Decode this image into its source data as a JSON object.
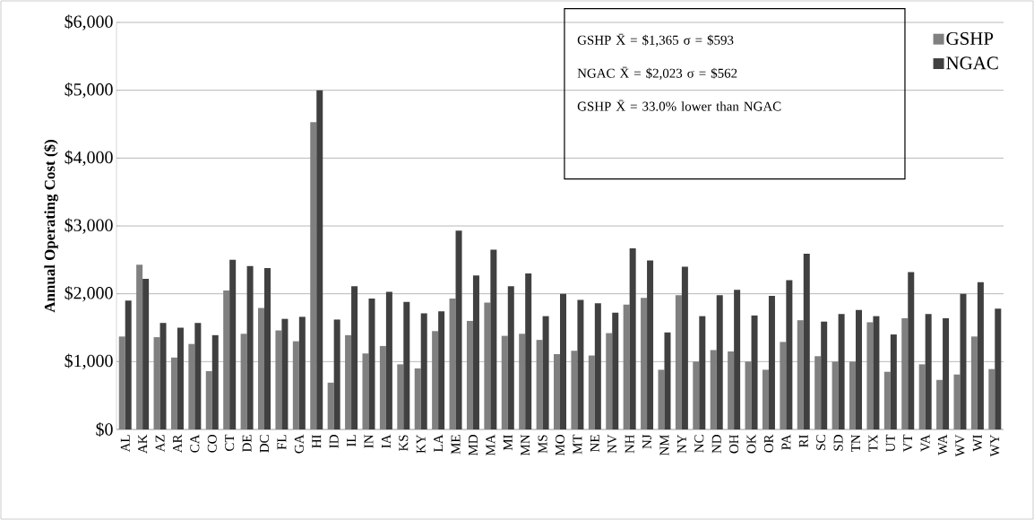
{
  "chart_data": {
    "type": "bar",
    "ylabel": "Annual Operating Cost ($)",
    "categories": [
      "AL",
      "AK",
      "AZ",
      "AR",
      "CA",
      "CO",
      "CT",
      "DE",
      "DC",
      "FL",
      "GA",
      "HI",
      "ID",
      "IL",
      "IN",
      "IA",
      "KS",
      "KY",
      "LA",
      "ME",
      "MD",
      "MA",
      "MI",
      "MN",
      "MS",
      "MO",
      "MT",
      "NE",
      "NV",
      "NH",
      "NJ",
      "NM",
      "NY",
      "NC",
      "ND",
      "OH",
      "OK",
      "OR",
      "PA",
      "RI",
      "SC",
      "SD",
      "TN",
      "TX",
      "UT",
      "VT",
      "VA",
      "WA",
      "WV",
      "WI",
      "WY"
    ],
    "series": [
      {
        "name": "GSHP",
        "color": "#808080",
        "values": [
          1370,
          2430,
          1360,
          1060,
          1260,
          860,
          2050,
          1410,
          1790,
          1460,
          1300,
          4530,
          690,
          1390,
          1120,
          1230,
          960,
          900,
          1450,
          1930,
          1600,
          1870,
          1380,
          1410,
          1320,
          1110,
          1160,
          1090,
          1420,
          1840,
          1940,
          880,
          1980,
          1000,
          1170,
          1150,
          1000,
          880,
          1290,
          1610,
          1080,
          1000,
          1000,
          1580,
          850,
          1640,
          960,
          730,
          810,
          1370,
          890
        ]
      },
      {
        "name": "NGAC",
        "color": "#404040",
        "values": [
          1900,
          2220,
          1570,
          1500,
          1570,
          1390,
          2500,
          2410,
          2380,
          1630,
          1660,
          5000,
          1620,
          2110,
          1930,
          2030,
          1880,
          1710,
          1740,
          2930,
          2270,
          2650,
          2110,
          2300,
          1670,
          2000,
          1910,
          1860,
          1720,
          2670,
          2490,
          1430,
          2400,
          1670,
          1980,
          2060,
          1680,
          1970,
          2200,
          2590,
          1590,
          1700,
          1760,
          1670,
          1400,
          2320,
          1700,
          1640,
          2000,
          2170,
          1780
        ]
      }
    ],
    "ylim": [
      0,
      6000
    ],
    "yticks": [
      {
        "value": 0,
        "label": "$0"
      },
      {
        "value": 1000,
        "label": "$1,000"
      },
      {
        "value": 2000,
        "label": "$2,000"
      },
      {
        "value": 3000,
        "label": "$3,000"
      },
      {
        "value": 4000,
        "label": "$4,000"
      },
      {
        "value": 5000,
        "label": "$5,000"
      },
      {
        "value": 6000,
        "label": "$6,000"
      }
    ],
    "grid": "y",
    "legend": "top right",
    "annotations": [
      "GSHP X̄ = $1,365   σ = $593",
      "NGAC X̄ = $2,023   σ =  $562",
      "GSHP X̄ = 33.0% lower than NGAC"
    ]
  }
}
